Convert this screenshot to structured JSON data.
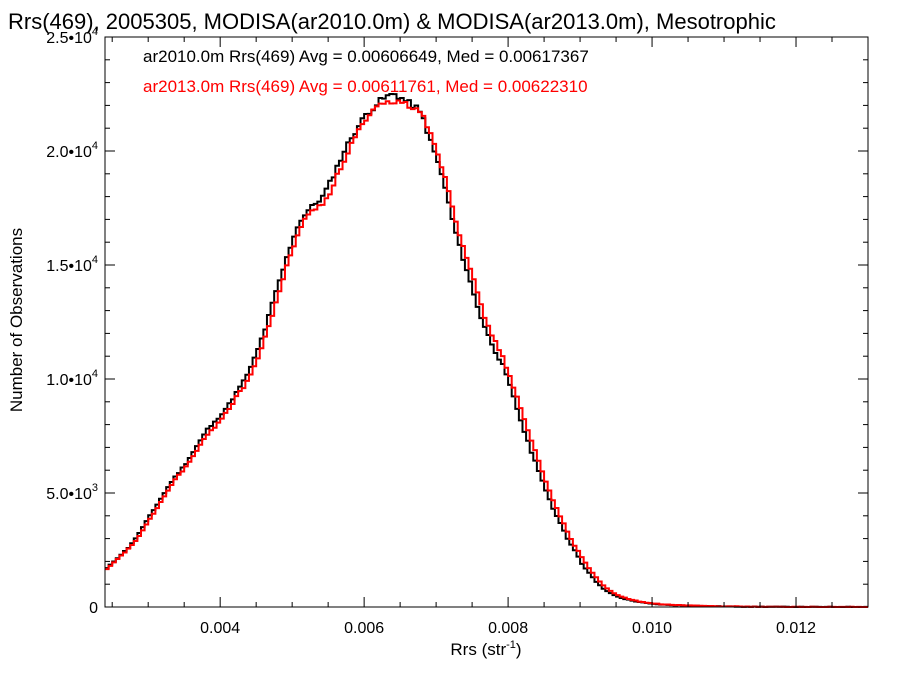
{
  "chart_data": {
    "type": "line",
    "title": "Rrs(469), 2005305, MODISA(ar2010.0m) & MODISA(ar2013.0m), Mesotrophic",
    "xlabel": "Rrs (str",
    "xlabel_sup": "-1",
    "xlabel_end": ")",
    "ylabel": "Number of Observations",
    "xlim": [
      0.0024,
      0.013
    ],
    "ylim": [
      0,
      25000
    ],
    "xticks": [
      {
        "value": 0.004,
        "label": "0.004"
      },
      {
        "value": 0.006,
        "label": "0.006"
      },
      {
        "value": 0.008,
        "label": "0.008"
      },
      {
        "value": 0.01,
        "label": "0.010"
      },
      {
        "value": 0.012,
        "label": "0.012"
      }
    ],
    "yticks": [
      {
        "value": 0,
        "label": "0",
        "sup": ""
      },
      {
        "value": 5000,
        "label": "5.0•10",
        "sup": "3"
      },
      {
        "value": 10000,
        "label": "1.0•10",
        "sup": "4"
      },
      {
        "value": 15000,
        "label": "1.5•10",
        "sup": "4"
      },
      {
        "value": 20000,
        "label": "2.0•10",
        "sup": "4"
      },
      {
        "value": 25000,
        "label": "2.5•10",
        "sup": "4"
      }
    ],
    "bin_width": 5e-05,
    "grid": false,
    "legend_position": "top-left",
    "series": [
      {
        "legend": "ar2010.0m Rrs(469) Avg = 0.00606649, Med = 0.00617367",
        "color": "#000000",
        "x": [
          0.0024,
          0.0025,
          0.0026,
          0.0027,
          0.0028,
          0.0029,
          0.003,
          0.0031,
          0.0032,
          0.0033,
          0.0034,
          0.0035,
          0.0036,
          0.0037,
          0.0038,
          0.0039,
          0.004,
          0.0041,
          0.0042,
          0.0043,
          0.0044,
          0.0045,
          0.0046,
          0.0047,
          0.0048,
          0.0049,
          0.005,
          0.0051,
          0.0052,
          0.0053,
          0.0054,
          0.0055,
          0.0056,
          0.0057,
          0.0058,
          0.0059,
          0.006,
          0.0061,
          0.0062,
          0.0063,
          0.0064,
          0.0065,
          0.0066,
          0.0067,
          0.0068,
          0.0069,
          0.007,
          0.0071,
          0.0072,
          0.0073,
          0.0074,
          0.0075,
          0.0076,
          0.0077,
          0.0078,
          0.0079,
          0.008,
          0.0081,
          0.0082,
          0.0083,
          0.0084,
          0.0085,
          0.0086,
          0.0087,
          0.0088,
          0.0089,
          0.009,
          0.0091,
          0.0092,
          0.0093,
          0.0094,
          0.0095,
          0.0096,
          0.0097,
          0.0098,
          0.0099,
          0.01,
          0.0102,
          0.0104,
          0.0106,
          0.0108,
          0.011,
          0.0112,
          0.0114,
          0.0116,
          0.0118,
          0.012,
          0.0122,
          0.0124,
          0.0126,
          0.0128,
          0.013
        ],
        "y": [
          1700,
          2000,
          2300,
          2600,
          3000,
          3500,
          4000,
          4500,
          5000,
          5500,
          5900,
          6300,
          6800,
          7300,
          7800,
          8100,
          8500,
          8900,
          9400,
          9900,
          10500,
          11300,
          12200,
          13300,
          14300,
          15300,
          16300,
          17000,
          17400,
          17700,
          18000,
          18600,
          19300,
          20000,
          20600,
          21100,
          21600,
          21900,
          22200,
          22400,
          22500,
          22300,
          22100,
          21900,
          21400,
          20400,
          19500,
          18400,
          17000,
          15800,
          14800,
          13700,
          12700,
          11900,
          11200,
          10600,
          9700,
          8700,
          7700,
          6800,
          6000,
          5100,
          4300,
          3700,
          3000,
          2500,
          1900,
          1500,
          1100,
          800,
          600,
          450,
          350,
          280,
          220,
          170,
          130,
          90,
          70,
          50,
          35,
          25,
          18,
          12,
          8,
          5,
          3,
          2,
          1,
          1,
          0,
          0
        ]
      },
      {
        "legend": "ar2013.0m Rrs(469) Avg = 0.00611761, Med = 0.00622310",
        "color": "#ff0000",
        "x": [
          0.0024,
          0.0025,
          0.0026,
          0.0027,
          0.0028,
          0.0029,
          0.003,
          0.0031,
          0.0032,
          0.0033,
          0.0034,
          0.0035,
          0.0036,
          0.0037,
          0.0038,
          0.0039,
          0.004,
          0.0041,
          0.0042,
          0.0043,
          0.0044,
          0.0045,
          0.0046,
          0.0047,
          0.0048,
          0.0049,
          0.005,
          0.0051,
          0.0052,
          0.0053,
          0.0054,
          0.0055,
          0.0056,
          0.0057,
          0.0058,
          0.0059,
          0.006,
          0.0061,
          0.0062,
          0.0063,
          0.0064,
          0.0065,
          0.0066,
          0.0067,
          0.0068,
          0.0069,
          0.007,
          0.0071,
          0.0072,
          0.0073,
          0.0074,
          0.0075,
          0.0076,
          0.0077,
          0.0078,
          0.0079,
          0.008,
          0.0081,
          0.0082,
          0.0083,
          0.0084,
          0.0085,
          0.0086,
          0.0087,
          0.0088,
          0.0089,
          0.009,
          0.0091,
          0.0092,
          0.0093,
          0.0094,
          0.0095,
          0.0096,
          0.0097,
          0.0098,
          0.0099,
          0.01,
          0.0102,
          0.0104,
          0.0106,
          0.0108,
          0.011,
          0.0112,
          0.0114,
          0.0116,
          0.0118,
          0.012,
          0.0122,
          0.0124,
          0.0126,
          0.0128,
          0.013
        ],
        "y": [
          1650,
          1950,
          2250,
          2550,
          2900,
          3350,
          3850,
          4350,
          4850,
          5350,
          5800,
          6150,
          6600,
          7100,
          7550,
          7900,
          8300,
          8700,
          9200,
          9650,
          10200,
          10900,
          11800,
          12800,
          13900,
          14900,
          15900,
          16700,
          17200,
          17500,
          17700,
          18200,
          18900,
          19600,
          20300,
          20900,
          21300,
          21700,
          22000,
          22100,
          22200,
          22100,
          22000,
          21900,
          21600,
          20700,
          19900,
          18900,
          17600,
          16400,
          15400,
          14300,
          13200,
          12300,
          11600,
          11000,
          10100,
          9200,
          8200,
          7300,
          6400,
          5500,
          4700,
          4000,
          3300,
          2700,
          2200,
          1700,
          1300,
          950,
          700,
          520,
          400,
          310,
          240,
          190,
          150,
          100,
          75,
          55,
          40,
          28,
          20,
          14,
          9,
          6,
          4,
          2,
          1,
          1,
          0,
          0
        ]
      }
    ]
  }
}
